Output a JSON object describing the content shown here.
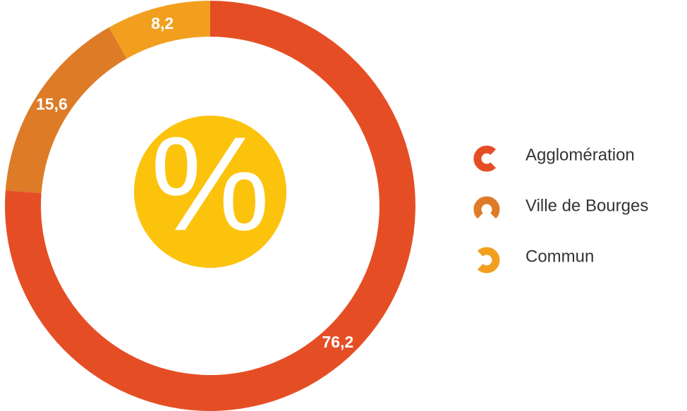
{
  "chart_data": {
    "type": "donut",
    "categories": [
      "Agglomération",
      "Ville de Bourges",
      "Commun"
    ],
    "values": [
      76.2,
      15.6,
      8.2
    ],
    "value_labels": [
      "76,2",
      "15,6",
      "8,2"
    ],
    "colors": [
      "#e54e25",
      "#dd7b27",
      "#f29f1f"
    ],
    "center_label": "%",
    "legend": "right"
  }
}
